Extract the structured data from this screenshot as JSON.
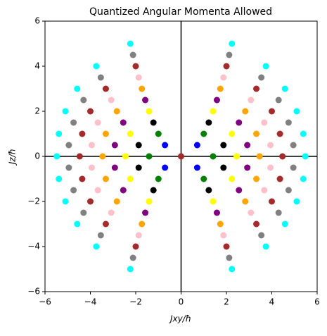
{
  "chart_data": {
    "type": "scatter",
    "title": "Quantized Angular Momenta Allowed",
    "xlabel": "Jxy/ħ",
    "ylabel": "Jz/ħ",
    "xlim": [
      -6,
      6
    ],
    "ylim": [
      -6,
      6
    ],
    "xticks": [
      {
        "value": -6,
        "label": "−6"
      },
      {
        "value": -4,
        "label": "−4"
      },
      {
        "value": -2,
        "label": "−2"
      },
      0,
      2,
      4,
      6
    ],
    "yticks": [
      {
        "value": -6,
        "label": "−6"
      },
      {
        "value": -4,
        "label": "−4"
      },
      {
        "value": -2,
        "label": "−2"
      },
      0,
      2,
      4,
      6
    ],
    "axhline": 0,
    "axvline": 0,
    "series": [
      {
        "color": "#a52a2a",
        "x": [
          0
        ],
        "y": [
          0
        ]
      },
      {
        "color": "#0000ff",
        "x": [
          0.71,
          0.71,
          -0.71,
          -0.71
        ],
        "y": [
          0.5,
          -0.5,
          0.5,
          -0.5
        ]
      },
      {
        "color": "#008000",
        "x": [
          1,
          1.41,
          1,
          -1,
          -1.41,
          -1
        ],
        "y": [
          1,
          0,
          -1,
          1,
          0,
          -1
        ]
      },
      {
        "color": "#000000",
        "x": [
          1.22,
          1.87,
          1.87,
          1.22,
          -1.22,
          -1.87,
          -1.87,
          -1.22
        ],
        "y": [
          1.5,
          0.5,
          -0.5,
          -1.5,
          1.5,
          0.5,
          -0.5,
          -1.5
        ]
      },
      {
        "color": "#ffff00",
        "x": [
          1.41,
          2.24,
          2.45,
          2.24,
          1.41,
          -1.41,
          -2.24,
          -2.45,
          -2.24,
          -1.41
        ],
        "y": [
          2,
          1,
          0,
          -1,
          -2,
          2,
          1,
          0,
          -1,
          -2
        ]
      },
      {
        "color": "#800080",
        "x": [
          1.58,
          2.55,
          2.92,
          2.92,
          2.55,
          1.58,
          -1.58,
          -2.55,
          -2.92,
          -2.92,
          -2.55,
          -1.58
        ],
        "y": [
          2.5,
          1.5,
          0.5,
          -0.5,
          -1.5,
          -2.5,
          2.5,
          1.5,
          0.5,
          -0.5,
          -1.5,
          -2.5
        ]
      },
      {
        "color": "#ffa500",
        "x": [
          1.73,
          2.83,
          3.32,
          3.46,
          3.32,
          2.83,
          1.73,
          -1.73,
          -2.83,
          -3.32,
          -3.46,
          -3.32,
          -2.83,
          -1.73
        ],
        "y": [
          3,
          2,
          1,
          0,
          -1,
          -2,
          -3,
          3,
          2,
          1,
          0,
          -1,
          -2,
          -3
        ]
      },
      {
        "color": "#ffc0cb",
        "x": [
          1.87,
          3.08,
          3.67,
          3.94,
          3.94,
          3.67,
          3.08,
          1.87,
          -1.87,
          -3.08,
          -3.67,
          -3.94,
          -3.94,
          -3.67,
          -3.08,
          -1.87
        ],
        "y": [
          3.5,
          2.5,
          1.5,
          0.5,
          -0.5,
          -1.5,
          -2.5,
          -3.5,
          3.5,
          2.5,
          1.5,
          0.5,
          -0.5,
          -1.5,
          -2.5,
          -3.5
        ]
      },
      {
        "color": "#a52a2a",
        "x": [
          2,
          3.32,
          4,
          4.36,
          4.47,
          4.36,
          4,
          3.32,
          2,
          -2,
          -3.32,
          -4,
          -4.36,
          -4.47,
          -4.36,
          -4,
          -3.32,
          -2
        ],
        "y": [
          4,
          3,
          2,
          1,
          0,
          -1,
          -2,
          -3,
          -4,
          4,
          3,
          2,
          1,
          0,
          -1,
          -2,
          -3,
          -4
        ]
      },
      {
        "color": "#808080",
        "x": [
          2.12,
          3.54,
          4.3,
          4.74,
          4.95,
          4.95,
          4.74,
          4.3,
          3.54,
          2.12,
          -2.12,
          -3.54,
          -4.3,
          -4.74,
          -4.95,
          -4.95,
          -4.74,
          -4.3,
          -3.54,
          -2.12
        ],
        "y": [
          4.5,
          3.5,
          2.5,
          1.5,
          0.5,
          -0.5,
          -1.5,
          -2.5,
          -3.5,
          -4.5,
          4.5,
          3.5,
          2.5,
          1.5,
          0.5,
          -0.5,
          -1.5,
          -2.5,
          -3.5,
          -4.5
        ]
      },
      {
        "color": "#00ffff",
        "x": [
          2.24,
          3.74,
          4.58,
          5.1,
          5.39,
          5.48,
          5.39,
          5.1,
          4.58,
          3.74,
          2.24,
          -2.24,
          -3.74,
          -4.58,
          -5.1,
          -5.39,
          -5.48,
          -5.39,
          -5.1,
          -4.58,
          -3.74,
          -2.24
        ],
        "y": [
          5,
          4,
          3,
          2,
          1,
          0,
          -1,
          -2,
          -3,
          -4,
          -5,
          5,
          4,
          3,
          2,
          1,
          0,
          -1,
          -2,
          -3,
          -4,
          -5
        ]
      }
    ]
  }
}
